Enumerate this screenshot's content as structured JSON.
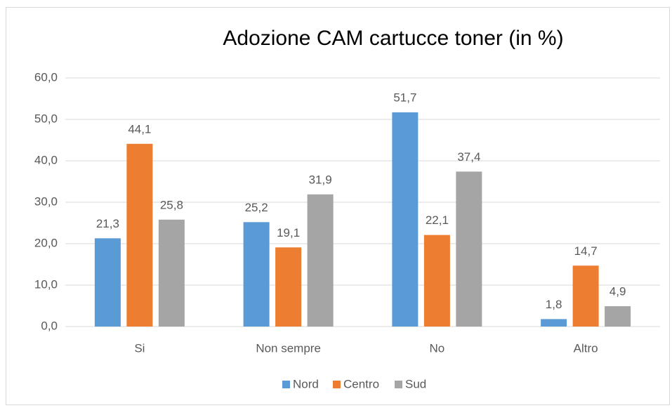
{
  "chart_data": {
    "type": "bar",
    "title": "Adozione CAM cartucce toner (in %)",
    "categories": [
      "Si",
      "Non sempre",
      "No",
      "Altro"
    ],
    "series": [
      {
        "name": "Nord",
        "color": "#5b9bd5",
        "values": [
          21.3,
          25.2,
          51.7,
          1.8
        ],
        "value_labels": [
          "21,3",
          "25,2",
          "51,7",
          "1,8"
        ]
      },
      {
        "name": "Centro",
        "color": "#ed7d31",
        "values": [
          44.1,
          19.1,
          22.1,
          14.7
        ],
        "value_labels": [
          "44,1",
          "19,1",
          "22,1",
          "14,7"
        ]
      },
      {
        "name": "Sud",
        "color": "#a5a5a5",
        "values": [
          25.8,
          31.9,
          37.4,
          4.9
        ],
        "value_labels": [
          "25,8",
          "31,9",
          "37,4",
          "4,9"
        ]
      }
    ],
    "ylim": [
      0,
      60
    ],
    "yticks": [
      {
        "value": 0,
        "label": "0,0"
      },
      {
        "value": 10,
        "label": "10,0"
      },
      {
        "value": 20,
        "label": "20,0"
      },
      {
        "value": 30,
        "label": "30,0"
      },
      {
        "value": 40,
        "label": "40,0"
      },
      {
        "value": 50,
        "label": "50,0"
      },
      {
        "value": 60,
        "label": "60,0"
      }
    ],
    "grid": true,
    "legend": "bottom"
  }
}
